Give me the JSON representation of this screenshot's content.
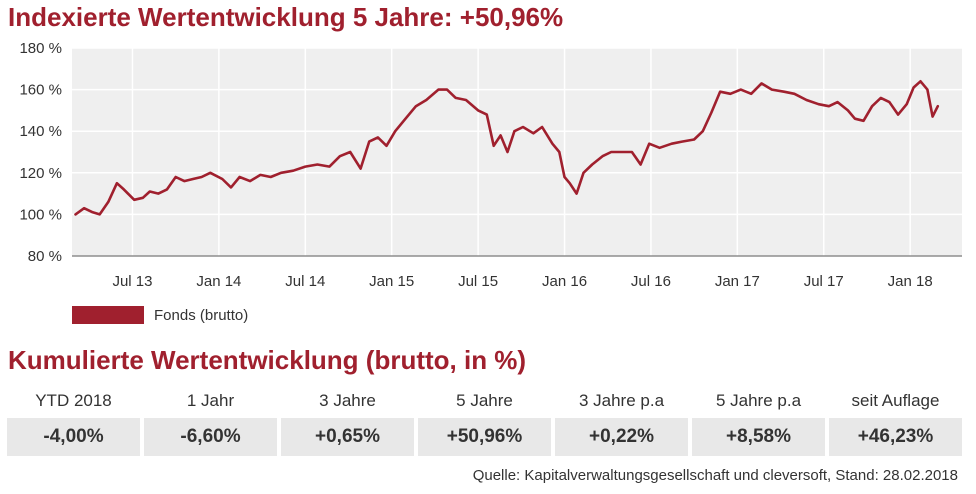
{
  "title": "Indexierte Wertentwicklung 5 Jahre: +50,96%",
  "chart_data": {
    "type": "line",
    "title": "Indexierte Wertentwicklung 5 Jahre: +50,96%",
    "ylim": [
      80,
      180
    ],
    "yticks": [
      "80 %",
      "100 %",
      "120 %",
      "140 %",
      "160 %",
      "180 %"
    ],
    "ytick_values": [
      80,
      100,
      120,
      140,
      160,
      180
    ],
    "xlim": [
      2013.15,
      2018.3
    ],
    "xticks": [
      "Jul 13",
      "Jan 14",
      "Jul 14",
      "Jan 15",
      "Jul 15",
      "Jan 16",
      "Jul 16",
      "Jan 17",
      "Jul 17",
      "Jan 18"
    ],
    "xtick_values": [
      2013.5,
      2014.0,
      2014.5,
      2015.0,
      2015.5,
      2016.0,
      2016.5,
      2017.0,
      2017.5,
      2018.0
    ],
    "grid": true,
    "legend_position": "bottom-left",
    "series": [
      {
        "name": "Fonds (brutto)",
        "color": "#a0202e",
        "points": [
          [
            2013.17,
            100
          ],
          [
            2013.22,
            103
          ],
          [
            2013.27,
            101
          ],
          [
            2013.31,
            100
          ],
          [
            2013.36,
            106
          ],
          [
            2013.41,
            115
          ],
          [
            2013.45,
            112
          ],
          [
            2013.51,
            107
          ],
          [
            2013.56,
            108
          ],
          [
            2013.6,
            111
          ],
          [
            2013.65,
            110
          ],
          [
            2013.7,
            112
          ],
          [
            2013.75,
            118
          ],
          [
            2013.8,
            116
          ],
          [
            2013.85,
            117
          ],
          [
            2013.9,
            118
          ],
          [
            2013.95,
            120
          ],
          [
            2014.02,
            117
          ],
          [
            2014.07,
            113
          ],
          [
            2014.12,
            118
          ],
          [
            2014.18,
            116
          ],
          [
            2014.24,
            119
          ],
          [
            2014.3,
            118
          ],
          [
            2014.36,
            120
          ],
          [
            2014.43,
            121
          ],
          [
            2014.5,
            123
          ],
          [
            2014.57,
            124
          ],
          [
            2014.64,
            123
          ],
          [
            2014.7,
            128
          ],
          [
            2014.76,
            130
          ],
          [
            2014.82,
            122
          ],
          [
            2014.87,
            135
          ],
          [
            2014.92,
            137
          ],
          [
            2014.97,
            133
          ],
          [
            2015.02,
            140
          ],
          [
            2015.08,
            146
          ],
          [
            2015.14,
            152
          ],
          [
            2015.2,
            155
          ],
          [
            2015.27,
            160
          ],
          [
            2015.32,
            160
          ],
          [
            2015.37,
            156
          ],
          [
            2015.43,
            155
          ],
          [
            2015.5,
            150
          ],
          [
            2015.55,
            148
          ],
          [
            2015.59,
            133
          ],
          [
            2015.63,
            138
          ],
          [
            2015.67,
            130
          ],
          [
            2015.71,
            140
          ],
          [
            2015.76,
            142
          ],
          [
            2015.82,
            139
          ],
          [
            2015.87,
            142
          ],
          [
            2015.93,
            134
          ],
          [
            2015.97,
            130
          ],
          [
            2016.0,
            118
          ],
          [
            2016.03,
            115
          ],
          [
            2016.07,
            110
          ],
          [
            2016.11,
            120
          ],
          [
            2016.16,
            124
          ],
          [
            2016.22,
            128
          ],
          [
            2016.27,
            130
          ],
          [
            2016.33,
            130
          ],
          [
            2016.39,
            130
          ],
          [
            2016.44,
            124
          ],
          [
            2016.49,
            134
          ],
          [
            2016.55,
            132
          ],
          [
            2016.62,
            134
          ],
          [
            2016.68,
            135
          ],
          [
            2016.75,
            136
          ],
          [
            2016.8,
            140
          ],
          [
            2016.85,
            149
          ],
          [
            2016.9,
            159
          ],
          [
            2016.96,
            158
          ],
          [
            2017.02,
            160
          ],
          [
            2017.08,
            158
          ],
          [
            2017.14,
            163
          ],
          [
            2017.2,
            160
          ],
          [
            2017.27,
            159
          ],
          [
            2017.33,
            158
          ],
          [
            2017.4,
            155
          ],
          [
            2017.47,
            153
          ],
          [
            2017.53,
            152
          ],
          [
            2017.58,
            154
          ],
          [
            2017.64,
            150
          ],
          [
            2017.68,
            146
          ],
          [
            2017.73,
            145
          ],
          [
            2017.78,
            152
          ],
          [
            2017.83,
            156
          ],
          [
            2017.88,
            154
          ],
          [
            2017.93,
            148
          ],
          [
            2017.98,
            153
          ],
          [
            2018.02,
            161
          ],
          [
            2018.06,
            164
          ],
          [
            2018.1,
            160
          ],
          [
            2018.13,
            147
          ],
          [
            2018.16,
            152
          ]
        ]
      }
    ]
  },
  "legend": {
    "label": "Fonds (brutto)",
    "color": "#a0202e"
  },
  "subtitle": "Kumulierte Wertentwicklung (brutto, in %)",
  "table": {
    "headers": [
      "YTD 2018",
      "1 Jahr",
      "3 Jahre",
      "5 Jahre",
      "3 Jahre p.a",
      "5 Jahre p.a",
      "seit Auflage"
    ],
    "values": [
      "-4,00%",
      "-6,60%",
      "+0,65%",
      "+50,96%",
      "+0,22%",
      "+8,58%",
      "+46,23%"
    ]
  },
  "source": "Quelle: Kapitalverwaltungsgesellschaft und cleversoft, Stand: 28.02.2018"
}
